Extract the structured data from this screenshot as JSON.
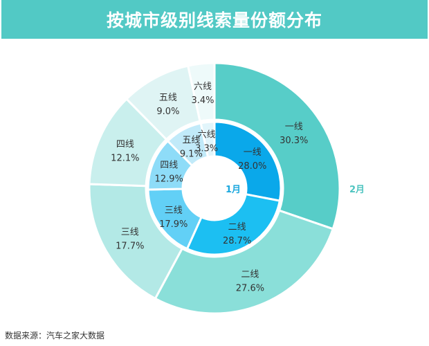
{
  "header": {
    "title": "按城市级别线索量份额分布"
  },
  "footer": {
    "source": "数据来源：汽车之家大数据"
  },
  "chart_data": {
    "type": "pie",
    "subtype": "nested-donut",
    "title": "按城市级别线索量份额分布",
    "categories": [
      "一线",
      "二线",
      "三线",
      "四线",
      "五线",
      "六线"
    ],
    "series": [
      {
        "name": "1月",
        "ring": "inner",
        "values": [
          28.0,
          28.7,
          17.9,
          12.9,
          9.1,
          3.3
        ],
        "colors": [
          "#0aa8ea",
          "#1cbff2",
          "#62d0f6",
          "#8edcf8",
          "#c1eaf9",
          "#e2f5fb"
        ]
      },
      {
        "name": "2月",
        "ring": "outer",
        "values": [
          30.3,
          27.6,
          17.7,
          12.1,
          9.0,
          3.4
        ],
        "colors": [
          "#57cdc8",
          "#8adfd9",
          "#b3e9e6",
          "#c9efed",
          "#dff4f4",
          "#eefafa"
        ]
      }
    ],
    "labels": {
      "inner_series_label": "1月",
      "outer_series_label": "2月",
      "inner_label_color": "#1aa7de",
      "outer_label_color": "#4ec4c0"
    },
    "unit": "%",
    "start_angle_deg": 0,
    "direction": "clockwise",
    "legend": "none"
  }
}
